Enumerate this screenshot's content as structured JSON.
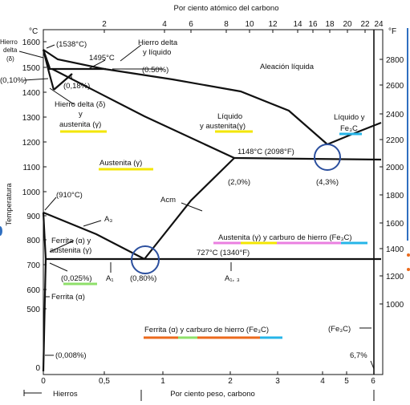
{
  "axes": {
    "top_title": "Por ciento atómico del carbono",
    "bottom_title": "Por ciento peso, carbono",
    "left_unit": "°C",
    "right_unit": "°F",
    "left_title": "Temperatura",
    "top_ticks": [
      "2",
      "4",
      "6",
      "8",
      "10",
      "12",
      "14",
      "16",
      "18",
      "20",
      "22",
      "24"
    ],
    "bottom_ticks": [
      "0",
      "0,5",
      "1",
      "2",
      "3",
      "4",
      "5",
      "6"
    ],
    "left_ticks": [
      "1600",
      "1500",
      "1400",
      "1300",
      "1200",
      "1100",
      "1000",
      "900",
      "800",
      "700",
      "600",
      "500",
      "0"
    ],
    "right_ticks": [
      "2800",
      "2600",
      "2400",
      "2200",
      "2000",
      "1800",
      "1600",
      "1400",
      "1200",
      "1000"
    ]
  },
  "labels": {
    "hierro_delta_1": "Hierro",
    "hierro_delta_2": "delta",
    "hierro_delta_3": "(δ)",
    "t1538": "(1538°C)",
    "t1495": "1495°C",
    "hdl_1": "Hierro delta",
    "hdl_2": "y líquido",
    "p050": "(0.50%)",
    "p010": "(0,10%)",
    "p018": "(0,18%)",
    "aleacion": "Aleación líquida",
    "hda_1": "Hierro delta (δ)",
    "hda_2": "y",
    "hda_3": "austenita (γ)",
    "la_1": "Líquido",
    "la_2": "y austenita(γ)",
    "lf_1": "Líquido y",
    "lf_2": "Fe₃C",
    "t1148": "1148°C (2098°F)",
    "austenita": "Austenita (γ)",
    "p20": "(2,0%)",
    "p43": "(4,3%)",
    "t910": "(910°C)",
    "acm": "Acm",
    "a3": "A₃",
    "fa_1": "Ferrita (α) y",
    "fa_2": "austenita (γ)",
    "acf": "Austenita (γ)  y carburo de hierro (Fe₃C)",
    "t727": "727°C (1340°F)",
    "p0025": "(0,025%)",
    "a1": "A₁",
    "p080": "(0,80%)",
    "a13": "A₁, ₃",
    "ferrita": "Ferrita  (α)",
    "fcf": "Ferrita (α) y carburo de hierro (Fe₃C)",
    "fe3c": "(Fe₃C)",
    "p0008": "(0,008%)",
    "p67": "6,7%",
    "hierros": "Hierros"
  },
  "colors": {
    "line": "#111111",
    "circle": "#2b4f9e",
    "highlight_yellow": "#f3e600",
    "highlight_green": "#8ee06a",
    "highlight_cyan": "#26b5e8",
    "highlight_pink": "#ea7fe0",
    "highlight_orange": "#ec6a1c",
    "edge_blue": "#2f6fc0"
  }
}
